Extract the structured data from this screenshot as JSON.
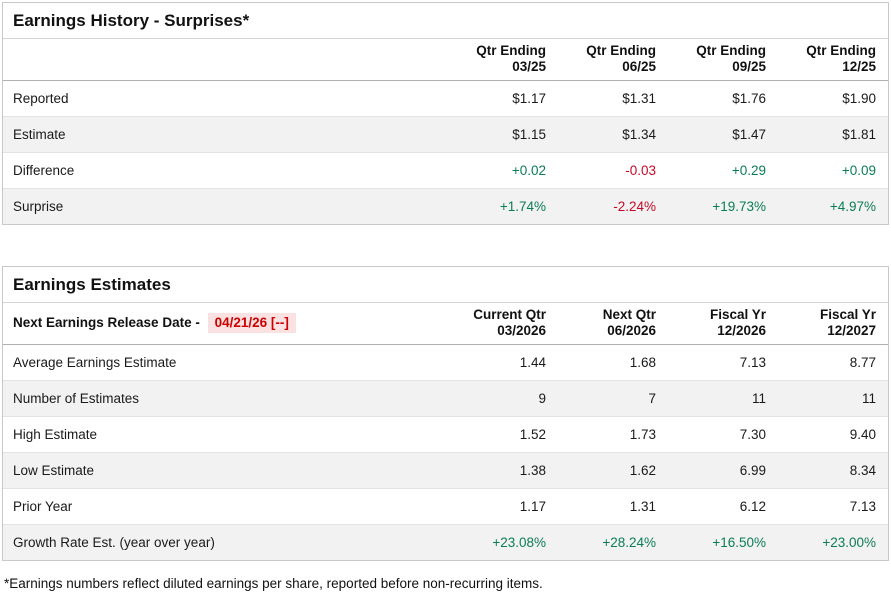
{
  "colors": {
    "positive": "#0b7c55",
    "negative": "#c40a28",
    "date_text": "#cc0000",
    "date_bg": "#fbe2e2"
  },
  "surprises_table": {
    "title": "Earnings History - Surprises*",
    "columns": [
      {
        "line1": "Qtr Ending",
        "line2": "03/25"
      },
      {
        "line1": "Qtr Ending",
        "line2": "06/25"
      },
      {
        "line1": "Qtr Ending",
        "line2": "09/25"
      },
      {
        "line1": "Qtr Ending",
        "line2": "12/25"
      }
    ],
    "rows": [
      {
        "label": "Reported",
        "cells": [
          {
            "text": "$1.17"
          },
          {
            "text": "$1.31"
          },
          {
            "text": "$1.76"
          },
          {
            "text": "$1.90"
          }
        ]
      },
      {
        "label": "Estimate",
        "cells": [
          {
            "text": "$1.15"
          },
          {
            "text": "$1.34"
          },
          {
            "text": "$1.47"
          },
          {
            "text": "$1.81"
          }
        ]
      },
      {
        "label": "Difference",
        "cells": [
          {
            "text": "+0.02",
            "tone": "positive"
          },
          {
            "text": "-0.03",
            "tone": "negative"
          },
          {
            "text": "+0.29",
            "tone": "positive"
          },
          {
            "text": "+0.09",
            "tone": "positive"
          }
        ]
      },
      {
        "label": "Surprise",
        "cells": [
          {
            "text": "+1.74%",
            "tone": "positive"
          },
          {
            "text": "-2.24%",
            "tone": "negative"
          },
          {
            "text": "+19.73%",
            "tone": "positive"
          },
          {
            "text": "+4.97%",
            "tone": "positive"
          }
        ]
      }
    ]
  },
  "estimates_table": {
    "title": "Earnings Estimates",
    "release_date_label": "Next Earnings Release Date -",
    "release_date_value": "04/21/26 [--]",
    "columns": [
      {
        "line1": "Current Qtr",
        "line2": "03/2026"
      },
      {
        "line1": "Next Qtr",
        "line2": "06/2026"
      },
      {
        "line1": "Fiscal Yr",
        "line2": "12/2026"
      },
      {
        "line1": "Fiscal Yr",
        "line2": "12/2027"
      }
    ],
    "rows": [
      {
        "label": "Average Earnings Estimate",
        "cells": [
          {
            "text": "1.44"
          },
          {
            "text": "1.68"
          },
          {
            "text": "7.13"
          },
          {
            "text": "8.77"
          }
        ]
      },
      {
        "label": "Number of Estimates",
        "cells": [
          {
            "text": "9"
          },
          {
            "text": "7"
          },
          {
            "text": "11"
          },
          {
            "text": "11"
          }
        ]
      },
      {
        "label": "High Estimate",
        "cells": [
          {
            "text": "1.52"
          },
          {
            "text": "1.73"
          },
          {
            "text": "7.30"
          },
          {
            "text": "9.40"
          }
        ]
      },
      {
        "label": "Low Estimate",
        "cells": [
          {
            "text": "1.38"
          },
          {
            "text": "1.62"
          },
          {
            "text": "6.99"
          },
          {
            "text": "8.34"
          }
        ]
      },
      {
        "label": "Prior Year",
        "cells": [
          {
            "text": "1.17"
          },
          {
            "text": "1.31"
          },
          {
            "text": "6.12"
          },
          {
            "text": "7.13"
          }
        ]
      },
      {
        "label": "Growth Rate Est. (year over year)",
        "cells": [
          {
            "text": "+23.08%",
            "tone": "positive"
          },
          {
            "text": "+28.24%",
            "tone": "positive"
          },
          {
            "text": "+16.50%",
            "tone": "positive"
          },
          {
            "text": "+23.00%",
            "tone": "positive"
          }
        ]
      }
    ]
  },
  "footnote": "*Earnings numbers reflect diluted earnings per share, reported before non-recurring items."
}
